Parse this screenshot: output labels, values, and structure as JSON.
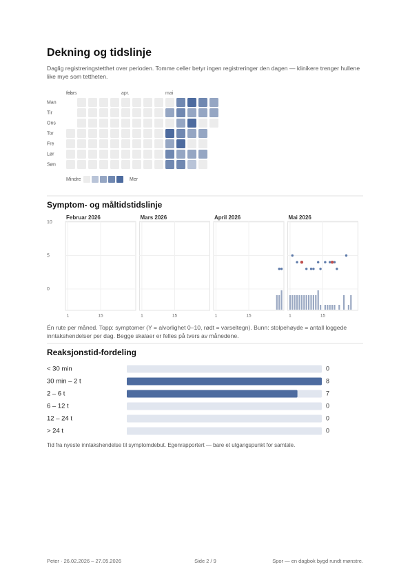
{
  "sections": {
    "coverage": {
      "title": "Dekning og tidslinje",
      "description": "Daglig registreringstetthet over perioden. Tomme celler betyr ingen registreringer den dagen — klinikere trenger hullene like mye som tettheten."
    },
    "timeline": {
      "title": "Symptom- og måltidstidslinje",
      "caption": "Én rute per måned. Topp: symptomer (Y = alvorlighet 0–10, rødt = varseltegn). Bunn: stolpehøyde = antall loggede inntakshendelser per dag. Begge skalaer er felles på tvers av månedene."
    },
    "reaction": {
      "title": "Reaksjonstid-fordeling",
      "note": "Tid fra nyeste inntakshendelse til symptomdebut. Egenrapportert — bare et utgangspunkt for samtale."
    }
  },
  "footer": {
    "left": "Peter · 26.02.2026 – 27.05.2026",
    "center": "Side 2 / 9",
    "right": "Spor — en dagbok bygd rundt mønstre."
  },
  "chart_data": [
    {
      "type": "heatmap",
      "month_labels": [
        [
          "feb",
          "mars"
        ],
        null,
        null,
        null,
        null,
        [
          "apr."
        ],
        null,
        null,
        null,
        [
          "mai"
        ],
        null,
        null,
        null,
        null
      ],
      "row_labels": [
        "Man",
        "Tir",
        "Ons",
        "Tor",
        "Fre",
        "Lør",
        "Søn"
      ],
      "levels": [
        [
          null,
          0,
          0,
          0,
          0,
          0,
          0,
          0,
          0,
          0,
          3,
          4,
          3,
          2
        ],
        [
          null,
          0,
          0,
          0,
          0,
          0,
          0,
          0,
          0,
          2,
          3,
          2,
          2,
          2
        ],
        [
          null,
          0,
          0,
          0,
          0,
          0,
          0,
          0,
          0,
          0,
          2,
          4,
          0,
          0
        ],
        [
          0,
          0,
          0,
          0,
          0,
          0,
          0,
          0,
          0,
          4,
          3,
          2,
          2,
          null
        ],
        [
          0,
          0,
          0,
          0,
          0,
          0,
          0,
          0,
          0,
          2,
          4,
          0,
          0,
          null
        ],
        [
          0,
          0,
          0,
          0,
          0,
          0,
          0,
          0,
          0,
          3,
          2,
          2,
          2,
          null
        ],
        [
          0,
          0,
          0,
          0,
          0,
          0,
          0,
          0,
          0,
          3,
          3,
          1,
          0,
          null
        ]
      ],
      "colors": [
        "#ececec",
        "#b9c4d8",
        "#95a6c3",
        "#7088b1",
        "#4d6b9f"
      ],
      "legend": {
        "less": "Mindre",
        "more": "Mer"
      }
    },
    {
      "type": "timeline",
      "ylim": [
        0,
        10
      ],
      "yticks": [
        0,
        5,
        10
      ],
      "bar_ylim": [
        0,
        4
      ],
      "xlim": [
        0,
        30
      ],
      "xticks": [
        1,
        15
      ],
      "symptom_color": "#5b78a8",
      "warning_color": "#c0504d",
      "intake_color": "#9aa8c2",
      "panels": [
        {
          "title": "Februar 2026",
          "symptoms": {
            "x": [],
            "values": []
          },
          "warnings": {
            "x": [],
            "values": []
          },
          "intake": {
            "x": [],
            "values": []
          }
        },
        {
          "title": "Mars 2026",
          "symptoms": {
            "x": [],
            "values": []
          },
          "warnings": {
            "x": [],
            "values": []
          },
          "intake": {
            "x": [],
            "values": []
          }
        },
        {
          "title": "April 2026",
          "symptoms": {
            "x": [
              28,
              29
            ],
            "values": [
              3,
              3
            ]
          },
          "warnings": {
            "x": [],
            "values": []
          },
          "intake": {
            "x": [
              27,
              28,
              29
            ],
            "values": [
              3,
              3,
              4
            ]
          }
        },
        {
          "title": "Mai 2026",
          "symptoms": {
            "x": [
              2,
              4,
              8,
              10,
              11,
              13,
              14,
              16,
              18,
              20,
              21,
              25
            ],
            "values": [
              5,
              4,
              3,
              3,
              3,
              4,
              3,
              4,
              4,
              4,
              3,
              5
            ]
          },
          "warnings": {
            "x": [
              6,
              19
            ],
            "values": [
              4,
              4
            ]
          },
          "intake": {
            "x": [
              1,
              2,
              3,
              4,
              5,
              6,
              7,
              8,
              9,
              10,
              11,
              12,
              13,
              14,
              16,
              17,
              18,
              19,
              20,
              22,
              24,
              26,
              27
            ],
            "values": [
              3,
              3,
              3,
              3,
              3,
              3,
              3,
              3,
              3,
              3,
              3,
              3,
              4,
              1,
              1,
              1,
              1,
              1,
              1,
              1,
              3,
              1,
              3
            ]
          }
        }
      ]
    },
    {
      "type": "bar",
      "categories": [
        "< 30 min",
        "30 min – 2 t",
        "2 – 6 t",
        "6 – 12 t",
        "12 – 24 t",
        "> 24 t"
      ],
      "values": [
        0,
        8,
        7,
        0,
        0,
        0
      ],
      "xlim": [
        0,
        8
      ],
      "color": "#4d6b9f",
      "track_color": "#e1e6ef"
    }
  ]
}
